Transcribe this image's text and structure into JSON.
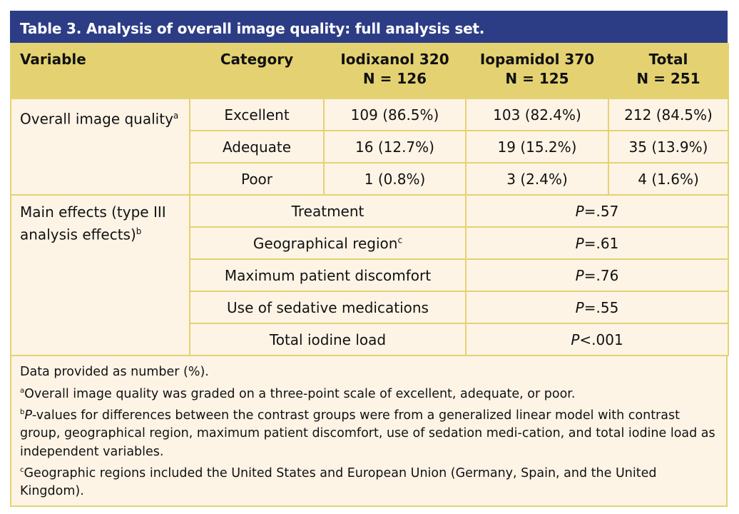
{
  "title": "Table 3. Analysis of overall image quality: full analysis set.",
  "headers": {
    "variable": "Variable",
    "category": "Category",
    "iod": "Iodixanol 320",
    "iod_n": "N = 126",
    "iop": "Iopamidol 370",
    "iop_n": "N = 125",
    "total": "Total",
    "total_n": "N = 251"
  },
  "quality": {
    "label": "Overall image quality",
    "sup": "a",
    "rows": [
      {
        "category": "Excellent",
        "iod": "109 (86.5%)",
        "iop": "103 (82.4%)",
        "total": "212 (84.5%)"
      },
      {
        "category": "Adequate",
        "iod": "16 (12.7%)",
        "iop": "19 (15.2%)",
        "total": "35 (13.9%)"
      },
      {
        "category": "Poor",
        "iod": "1 (0.8%)",
        "iop": "3 (2.4%)",
        "total": "4 (1.6%)"
      }
    ]
  },
  "effects": {
    "label": "Main effects (type III analysis effects)",
    "sup": "b",
    "rows": [
      {
        "name": "Treatment",
        "sup": "",
        "p": "=.57"
      },
      {
        "name": "Geographical region",
        "sup": "c",
        "p": "=.61"
      },
      {
        "name": "Maximum patient discomfort",
        "sup": "",
        "p": "=.76"
      },
      {
        "name": "Use of sedative medications",
        "sup": "",
        "p": "=.55"
      },
      {
        "name": "Total iodine load",
        "sup": "",
        "p": "<.001"
      }
    ]
  },
  "p_symbol": "P",
  "notes": {
    "n0": "Data provided as number (%).",
    "a_sup": "a",
    "a": "Overall image quality was graded on a three-point scale of excellent, adequate, or poor.",
    "b_sup": "b",
    "b_p": "P",
    "b": "-values for differences between the contrast groups were from a generalized linear model with contrast group, geographical region, maximum patient discomfort, use of sedation medi-cation, and total iodine load as independent variables.",
    "c_sup": "c",
    "c": "Geographic regions included the United States and European Union (Germany, Spain, and the United Kingdom)."
  }
}
